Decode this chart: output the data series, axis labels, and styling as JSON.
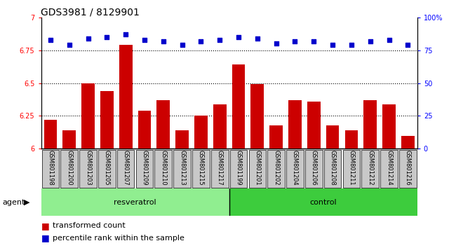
{
  "title": "GDS3981 / 8129901",
  "categories": [
    "GSM801198",
    "GSM801200",
    "GSM801203",
    "GSM801205",
    "GSM801207",
    "GSM801209",
    "GSM801210",
    "GSM801213",
    "GSM801215",
    "GSM801217",
    "GSM801199",
    "GSM801201",
    "GSM801202",
    "GSM801204",
    "GSM801206",
    "GSM801208",
    "GSM801211",
    "GSM801212",
    "GSM801214",
    "GSM801216"
  ],
  "bar_values": [
    6.22,
    6.14,
    6.5,
    6.44,
    6.79,
    6.29,
    6.37,
    6.14,
    6.25,
    6.34,
    6.64,
    6.49,
    6.18,
    6.37,
    6.36,
    6.18,
    6.14,
    6.37,
    6.34,
    6.1
  ],
  "percentile_values": [
    83,
    79,
    84,
    85,
    87,
    83,
    82,
    79,
    82,
    83,
    85,
    84,
    80,
    82,
    82,
    79,
    79,
    82,
    83,
    79
  ],
  "bar_color": "#cc0000",
  "dot_color": "#0000cc",
  "ylim_left": [
    6.0,
    7.0
  ],
  "ylim_right": [
    0,
    100
  ],
  "yticks_left": [
    6.0,
    6.25,
    6.5,
    6.75,
    7.0
  ],
  "ytick_labels_left": [
    "6",
    "6.25",
    "6.5",
    "6.75",
    "7"
  ],
  "yticks_right": [
    0,
    25,
    50,
    75,
    100
  ],
  "ytick_labels_right": [
    "0",
    "25",
    "50",
    "75",
    "100%"
  ],
  "grid_values": [
    6.25,
    6.5,
    6.75
  ],
  "resveratrol_count": 10,
  "control_count": 10,
  "group_labels": [
    "resveratrol",
    "control"
  ],
  "agent_label": "agent",
  "legend_items": [
    "transformed count",
    "percentile rank within the sample"
  ],
  "bar_width": 0.7,
  "bg_color_ticks": "#c8c8c8",
  "bg_color_resveratrol": "#90ee90",
  "bg_color_control": "#3dcc3d",
  "title_fontsize": 10,
  "tick_label_fontsize": 7,
  "axis_label_fontsize": 8,
  "legend_fontsize": 8
}
